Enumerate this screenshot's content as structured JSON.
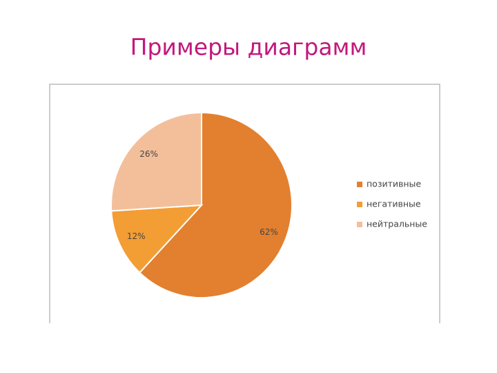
{
  "chart_data": {
    "type": "pie",
    "title": "Примеры диаграмм",
    "categories": [
      "позитивные",
      "негативные",
      "нейтральные"
    ],
    "values": [
      62,
      12,
      26
    ],
    "value_labels": [
      "62%",
      "12%",
      "26%"
    ],
    "colors": [
      "#e2802f",
      "#f39d35",
      "#f3bf9b"
    ],
    "legend": "right"
  }
}
